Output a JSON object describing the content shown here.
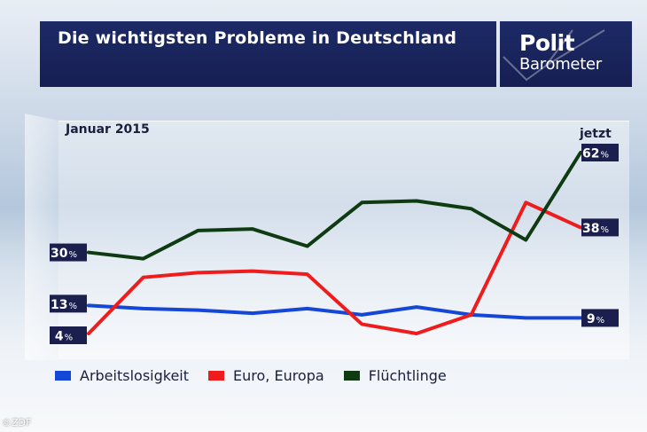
{
  "header": {
    "title": "Die wichtigsten Probleme in Deutschland",
    "logo_line1": "Polit",
    "logo_line2": "Barometer"
  },
  "source": "©ZDF",
  "colors": {
    "header_bg": "#1b2660",
    "label_bg": "#1b1f4e",
    "Arbeitslosigkeit": "#1447d6",
    "Euro, Europa": "#ee1c1c",
    "Flüchtlinge": "#0f3b12"
  },
  "chart_data": {
    "type": "line",
    "title": "Die wichtigsten Probleme in Deutschland",
    "start_label": "Januar 2015",
    "end_label": "jetzt",
    "ylabel": "",
    "ylim": [
      0,
      70
    ],
    "grid": false,
    "legend_position": "bottom",
    "x": [
      1,
      2,
      3,
      4,
      5,
      6,
      7,
      8,
      9,
      10
    ],
    "series": [
      {
        "name": "Arbeitslosigkeit",
        "values": [
          13,
          12,
          11.5,
          10.5,
          12,
          10,
          12.5,
          10,
          9,
          9
        ],
        "start_label": "13",
        "end_label": "9"
      },
      {
        "name": "Euro, Europa",
        "values": [
          4,
          22,
          23.5,
          24,
          23,
          7,
          4,
          10,
          46,
          38
        ],
        "start_label": "4",
        "end_label": "38"
      },
      {
        "name": "Flüchtlinge",
        "values": [
          30,
          28,
          37,
          37.5,
          32,
          46,
          46.5,
          44,
          34,
          62
        ],
        "start_label": "30",
        "end_label": "62"
      }
    ],
    "unit": "%"
  }
}
